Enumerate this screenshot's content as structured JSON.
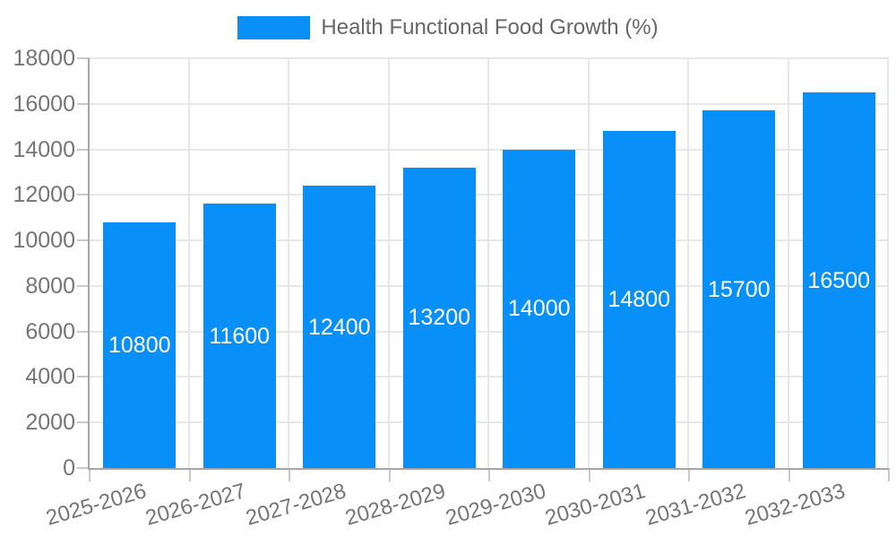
{
  "legend": {
    "label": "Health Functional Food Growth (%)"
  },
  "colors": {
    "bar": "#0890f8",
    "value_label": "#ffffff",
    "axis_text": "#757575",
    "legend_text": "#666666",
    "grid": "#e7e7e7",
    "axis_line": "#a6a6a6",
    "tick": "#c9c9c9",
    "background": "#ffffff"
  },
  "chart_data": {
    "type": "bar",
    "title": "",
    "categories": [
      "2025-2026",
      "2026-2027",
      "2027-2028",
      "2028-2029",
      "2029-2030",
      "2030-2031",
      "2031-2032",
      "2032-2033"
    ],
    "values": [
      10800,
      11600,
      12400,
      13200,
      14000,
      14800,
      15700,
      16500
    ],
    "series_name": "Health Functional Food Growth (%)",
    "value_labels": [
      "10800",
      "11600",
      "12400",
      "13200",
      "14000",
      "14800",
      "15700",
      "16500"
    ],
    "xlabel": "",
    "ylabel": "",
    "ylim": [
      0,
      18000
    ],
    "ytick_step": 2000,
    "ytick_labels": [
      "0",
      "2000",
      "4000",
      "6000",
      "8000",
      "10000",
      "12000",
      "14000",
      "16000",
      "18000"
    ],
    "grid": true,
    "legend_position": "top",
    "value_label_position": "inside-center",
    "x_label_rotation_deg": -16
  }
}
